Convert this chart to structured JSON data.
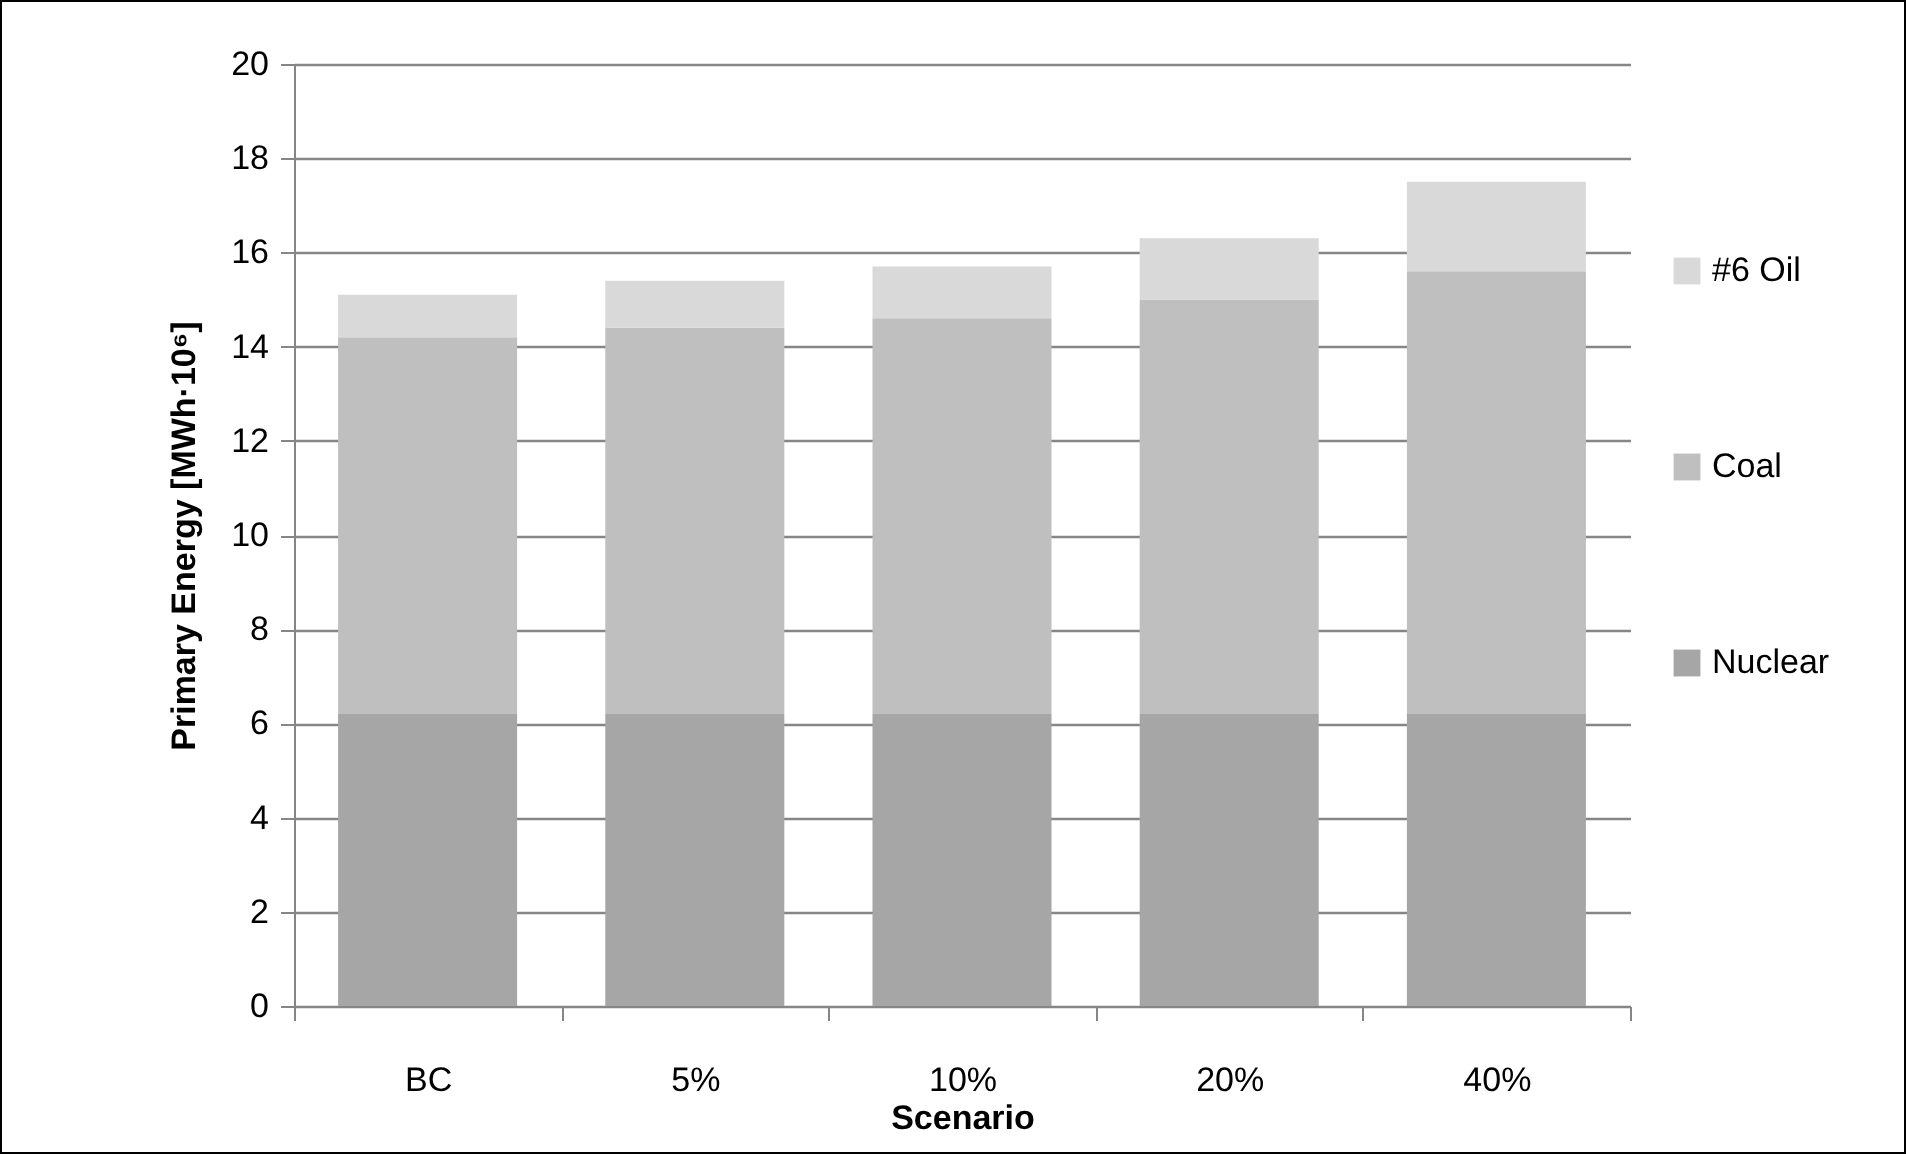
{
  "chart_data": {
    "type": "bar",
    "stacked": true,
    "xlabel": "Scenario",
    "ylabel": "Primary Energy [MWh·10⁶]",
    "categories": [
      "BC",
      "5%",
      "10%",
      "20%",
      "40%"
    ],
    "series": [
      {
        "name": "Nuclear",
        "color": "#a6a6a6",
        "values": [
          6.2,
          6.2,
          6.2,
          6.2,
          6.2
        ]
      },
      {
        "name": "Coal",
        "color": "#bfbfbf",
        "values": [
          8.0,
          8.2,
          8.4,
          8.8,
          9.4
        ]
      },
      {
        "name": "#6 Oil",
        "color": "#d9d9d9",
        "values": [
          0.9,
          1.0,
          1.1,
          1.3,
          1.9
        ]
      }
    ],
    "ylim": [
      0,
      20
    ],
    "yticks": [
      0,
      2,
      4,
      6,
      8,
      10,
      12,
      14,
      16,
      18,
      20
    ],
    "grid": "y",
    "legend": "right"
  }
}
